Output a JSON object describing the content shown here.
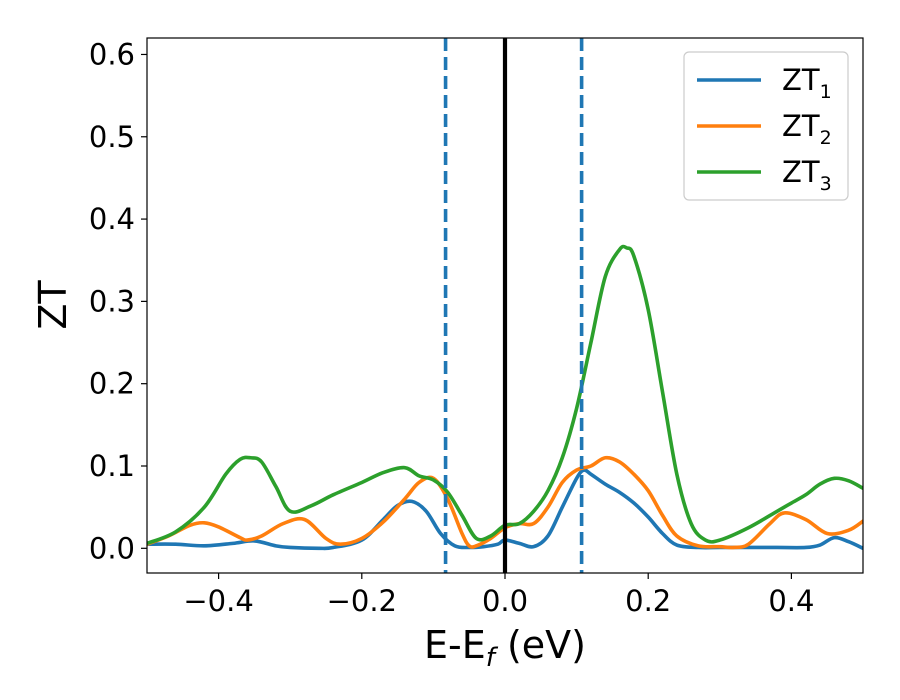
{
  "chart_data": {
    "type": "line",
    "xlabel": {
      "main": "E-E",
      "sub": "f",
      "suffix": " (eV)"
    },
    "ylabel": "ZT",
    "xlim": [
      -0.5,
      0.5
    ],
    "ylim": [
      -0.03,
      0.62
    ],
    "xticks": [
      -0.4,
      -0.2,
      0.0,
      0.2,
      0.4
    ],
    "xtick_labels": [
      "−0.4",
      "−0.2",
      "0.0",
      "0.2",
      "0.4"
    ],
    "yticks": [
      0.0,
      0.1,
      0.2,
      0.3,
      0.4,
      0.5,
      0.6
    ],
    "ytick_labels": [
      "0.0",
      "0.1",
      "0.2",
      "0.3",
      "0.4",
      "0.5",
      "0.6"
    ],
    "grid": false,
    "legend_position": "top-right",
    "vlines": [
      {
        "x": -0.083,
        "style": "dashed",
        "color": "#1f77b4"
      },
      {
        "x": 0.107,
        "style": "dashed",
        "color": "#1f77b4"
      },
      {
        "x": 0.0,
        "style": "solid",
        "color": "#000000"
      }
    ],
    "series": [
      {
        "name": "ZT",
        "sub": "1",
        "color": "#1f77b4",
        "x": [
          -0.5,
          -0.46,
          -0.42,
          -0.38,
          -0.35,
          -0.32,
          -0.3,
          -0.26,
          -0.24,
          -0.2,
          -0.17,
          -0.15,
          -0.13,
          -0.11,
          -0.09,
          -0.07,
          -0.05,
          -0.03,
          -0.01,
          0.0,
          0.02,
          0.04,
          0.06,
          0.08,
          0.1,
          0.11,
          0.12,
          0.14,
          0.16,
          0.18,
          0.2,
          0.22,
          0.24,
          0.27,
          0.3,
          0.34,
          0.38,
          0.42,
          0.44,
          0.46,
          0.48,
          0.5
        ],
        "y": [
          0.005,
          0.005,
          0.003,
          0.006,
          0.009,
          0.003,
          0.001,
          0.0,
          0.001,
          0.01,
          0.035,
          0.052,
          0.057,
          0.045,
          0.018,
          0.003,
          0.001,
          0.002,
          0.005,
          0.01,
          0.006,
          0.002,
          0.015,
          0.05,
          0.085,
          0.095,
          0.09,
          0.078,
          0.068,
          0.055,
          0.038,
          0.018,
          0.004,
          0.001,
          0.001,
          0.001,
          0.001,
          0.001,
          0.004,
          0.013,
          0.008,
          0.0
        ]
      },
      {
        "name": "ZT",
        "sub": "2",
        "color": "#ff7f0e",
        "x": [
          -0.5,
          -0.47,
          -0.44,
          -0.42,
          -0.4,
          -0.37,
          -0.36,
          -0.34,
          -0.31,
          -0.28,
          -0.25,
          -0.23,
          -0.2,
          -0.17,
          -0.14,
          -0.12,
          -0.1,
          -0.08,
          -0.06,
          -0.05,
          -0.04,
          -0.02,
          0.0,
          0.02,
          0.04,
          0.06,
          0.08,
          0.1,
          0.12,
          0.14,
          0.16,
          0.18,
          0.2,
          0.22,
          0.24,
          0.27,
          0.3,
          0.32,
          0.34,
          0.37,
          0.39,
          0.42,
          0.45,
          0.48,
          0.5
        ],
        "y": [
          0.005,
          0.015,
          0.028,
          0.031,
          0.026,
          0.013,
          0.01,
          0.015,
          0.03,
          0.035,
          0.012,
          0.005,
          0.012,
          0.032,
          0.06,
          0.08,
          0.085,
          0.06,
          0.018,
          0.003,
          0.003,
          0.012,
          0.025,
          0.03,
          0.03,
          0.05,
          0.08,
          0.095,
          0.1,
          0.11,
          0.105,
          0.09,
          0.07,
          0.04,
          0.015,
          0.003,
          0.002,
          0.001,
          0.005,
          0.03,
          0.043,
          0.035,
          0.018,
          0.022,
          0.033
        ]
      },
      {
        "name": "ZT",
        "sub": "3",
        "color": "#2ca02c",
        "x": [
          -0.5,
          -0.46,
          -0.42,
          -0.39,
          -0.37,
          -0.355,
          -0.34,
          -0.32,
          -0.3,
          -0.27,
          -0.24,
          -0.2,
          -0.17,
          -0.14,
          -0.12,
          -0.1,
          -0.08,
          -0.06,
          -0.04,
          -0.02,
          0.0,
          0.02,
          0.04,
          0.06,
          0.08,
          0.1,
          0.12,
          0.14,
          0.16,
          0.17,
          0.18,
          0.2,
          0.22,
          0.24,
          0.26,
          0.28,
          0.3,
          0.34,
          0.38,
          0.4,
          0.42,
          0.44,
          0.46,
          0.48,
          0.5
        ],
        "y": [
          0.006,
          0.02,
          0.05,
          0.09,
          0.108,
          0.11,
          0.105,
          0.075,
          0.045,
          0.052,
          0.065,
          0.08,
          0.092,
          0.098,
          0.088,
          0.083,
          0.068,
          0.04,
          0.012,
          0.015,
          0.028,
          0.03,
          0.045,
          0.07,
          0.11,
          0.17,
          0.25,
          0.33,
          0.363,
          0.365,
          0.355,
          0.29,
          0.19,
          0.09,
          0.03,
          0.01,
          0.01,
          0.025,
          0.045,
          0.055,
          0.065,
          0.078,
          0.085,
          0.082,
          0.073
        ]
      }
    ]
  }
}
